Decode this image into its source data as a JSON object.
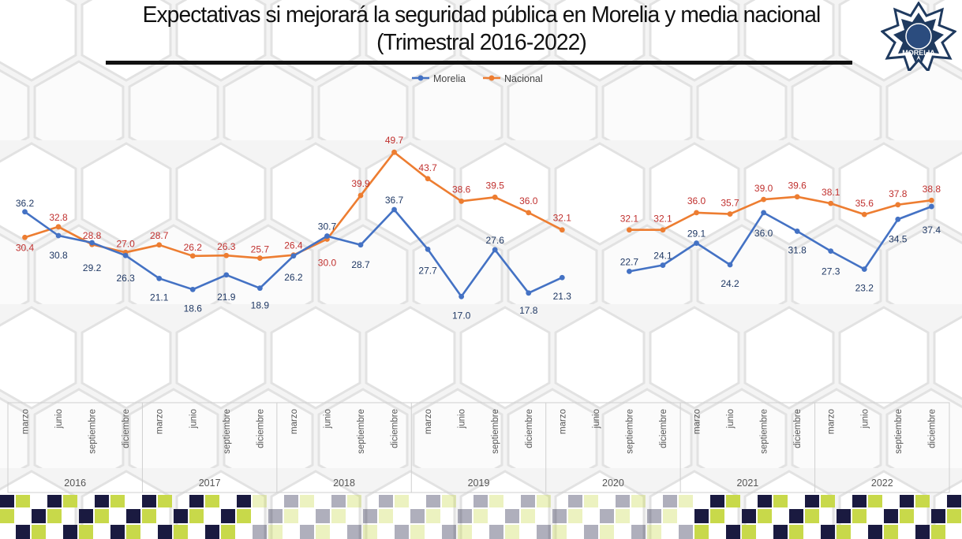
{
  "title_line1": "Expectativas si mejorará la seguridad pública en Morelia y media nacional",
  "title_line2": "(Trimestral 2016-2022)",
  "logo_text": "MORELIA",
  "colors": {
    "morelia": "#4472c4",
    "nacional": "#ed7d31",
    "nacional_label": "#c0302e",
    "morelia_label": "#1f3864"
  },
  "chart_data": {
    "type": "line",
    "title": "Expectativas si mejorará la seguridad pública en Morelia y media nacional (Trimestral 2016-2022)",
    "legend_position": "top-center",
    "years": [
      "2016",
      "2017",
      "2018",
      "2019",
      "2020",
      "2021",
      "2022"
    ],
    "quarters": [
      "marzo",
      "junio",
      "septiembre",
      "diciembre"
    ],
    "categories": [
      "marzo",
      "junio",
      "septiembre",
      "diciembre",
      "marzo",
      "junio",
      "septiembre",
      "diciembre",
      "marzo",
      "junio",
      "septiembre",
      "diciembre",
      "marzo",
      "junio",
      "septiembre",
      "diciembre",
      "marzo",
      "junio",
      "septiembre",
      "diciembre",
      "marzo",
      "junio",
      "septiembre",
      "diciembre",
      "marzo",
      "junio",
      "septiembre",
      "diciembre"
    ],
    "series": [
      {
        "name": "Morelia",
        "values": [
          36.2,
          30.8,
          29.2,
          26.3,
          21.1,
          18.6,
          21.9,
          18.9,
          26.2,
          30.7,
          28.7,
          36.7,
          27.7,
          17.0,
          27.6,
          17.8,
          21.3,
          null,
          22.7,
          24.1,
          29.1,
          24.2,
          36.0,
          31.8,
          27.3,
          23.2,
          34.5,
          37.4
        ]
      },
      {
        "name": "Nacional",
        "values": [
          30.4,
          32.8,
          28.8,
          27.0,
          28.7,
          26.2,
          26.3,
          25.7,
          26.4,
          30.0,
          39.9,
          49.7,
          43.7,
          38.6,
          39.5,
          36.0,
          32.1,
          null,
          32.1,
          32.1,
          36.0,
          35.7,
          39.0,
          39.6,
          38.1,
          35.6,
          37.8,
          38.8
        ]
      }
    ],
    "ylim": [
      0,
      60
    ],
    "grid": false
  }
}
